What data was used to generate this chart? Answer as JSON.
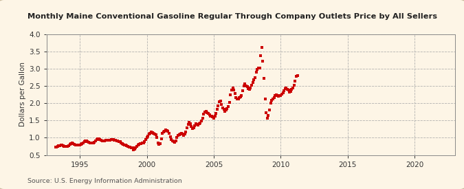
{
  "title": "Monthly Maine Conventional Gasoline Regular Through Company Outlets Price by All Sellers",
  "ylabel": "Dollars per Gallon",
  "source": "Source: U.S. Energy Information Administration",
  "background_color": "#fdf5e6",
  "plot_bg_color": "#fdf5e6",
  "line_color": "#cc0000",
  "marker": "s",
  "markersize": 2.8,
  "xlim": [
    1992.5,
    2023
  ],
  "ylim": [
    0.5,
    4.0
  ],
  "yticks": [
    0.5,
    1.0,
    1.5,
    2.0,
    2.5,
    3.0,
    3.5,
    4.0
  ],
  "xticks": [
    1995,
    2000,
    2005,
    2010,
    2015,
    2020
  ],
  "border_color": "#c8b89a",
  "data": [
    [
      1993.17,
      0.72
    ],
    [
      1993.25,
      0.73
    ],
    [
      1993.33,
      0.75
    ],
    [
      1993.42,
      0.76
    ],
    [
      1993.5,
      0.77
    ],
    [
      1993.58,
      0.79
    ],
    [
      1993.67,
      0.78
    ],
    [
      1993.75,
      0.76
    ],
    [
      1993.83,
      0.75
    ],
    [
      1993.92,
      0.75
    ],
    [
      1994.0,
      0.74
    ],
    [
      1994.08,
      0.74
    ],
    [
      1994.17,
      0.76
    ],
    [
      1994.25,
      0.8
    ],
    [
      1994.33,
      0.83
    ],
    [
      1994.42,
      0.84
    ],
    [
      1994.5,
      0.83
    ],
    [
      1994.58,
      0.81
    ],
    [
      1994.67,
      0.79
    ],
    [
      1994.75,
      0.78
    ],
    [
      1994.83,
      0.78
    ],
    [
      1994.92,
      0.78
    ],
    [
      1995.0,
      0.79
    ],
    [
      1995.08,
      0.81
    ],
    [
      1995.17,
      0.83
    ],
    [
      1995.25,
      0.85
    ],
    [
      1995.33,
      0.88
    ],
    [
      1995.42,
      0.91
    ],
    [
      1995.5,
      0.9
    ],
    [
      1995.58,
      0.88
    ],
    [
      1995.67,
      0.86
    ],
    [
      1995.75,
      0.85
    ],
    [
      1995.83,
      0.84
    ],
    [
      1995.92,
      0.84
    ],
    [
      1996.0,
      0.85
    ],
    [
      1996.08,
      0.86
    ],
    [
      1996.17,
      0.9
    ],
    [
      1996.25,
      0.95
    ],
    [
      1996.33,
      0.97
    ],
    [
      1996.42,
      0.97
    ],
    [
      1996.5,
      0.95
    ],
    [
      1996.58,
      0.93
    ],
    [
      1996.67,
      0.91
    ],
    [
      1996.75,
      0.9
    ],
    [
      1996.83,
      0.91
    ],
    [
      1996.92,
      0.92
    ],
    [
      1997.0,
      0.93
    ],
    [
      1997.08,
      0.92
    ],
    [
      1997.17,
      0.92
    ],
    [
      1997.25,
      0.93
    ],
    [
      1997.33,
      0.94
    ],
    [
      1997.42,
      0.94
    ],
    [
      1997.5,
      0.94
    ],
    [
      1997.58,
      0.93
    ],
    [
      1997.67,
      0.92
    ],
    [
      1997.75,
      0.91
    ],
    [
      1997.83,
      0.9
    ],
    [
      1997.92,
      0.89
    ],
    [
      1998.0,
      0.88
    ],
    [
      1998.08,
      0.85
    ],
    [
      1998.17,
      0.82
    ],
    [
      1998.25,
      0.8
    ],
    [
      1998.33,
      0.79
    ],
    [
      1998.42,
      0.78
    ],
    [
      1998.5,
      0.76
    ],
    [
      1998.58,
      0.74
    ],
    [
      1998.67,
      0.73
    ],
    [
      1998.75,
      0.72
    ],
    [
      1998.83,
      0.71
    ],
    [
      1998.92,
      0.7
    ],
    [
      1999.0,
      0.65
    ],
    [
      1999.08,
      0.66
    ],
    [
      1999.17,
      0.7
    ],
    [
      1999.25,
      0.75
    ],
    [
      1999.33,
      0.79
    ],
    [
      1999.42,
      0.8
    ],
    [
      1999.5,
      0.82
    ],
    [
      1999.58,
      0.83
    ],
    [
      1999.67,
      0.84
    ],
    [
      1999.75,
      0.85
    ],
    [
      1999.83,
      0.88
    ],
    [
      1999.92,
      0.94
    ],
    [
      2000.0,
      1.0
    ],
    [
      2000.08,
      1.05
    ],
    [
      2000.17,
      1.1
    ],
    [
      2000.25,
      1.13
    ],
    [
      2000.33,
      1.16
    ],
    [
      2000.42,
      1.14
    ],
    [
      2000.5,
      1.12
    ],
    [
      2000.58,
      1.1
    ],
    [
      2000.67,
      1.08
    ],
    [
      2000.75,
      1.0
    ],
    [
      2000.83,
      0.84
    ],
    [
      2000.92,
      0.8
    ],
    [
      2001.0,
      0.82
    ],
    [
      2001.08,
      0.96
    ],
    [
      2001.17,
      1.13
    ],
    [
      2001.25,
      1.17
    ],
    [
      2001.33,
      1.19
    ],
    [
      2001.42,
      1.22
    ],
    [
      2001.5,
      1.2
    ],
    [
      2001.58,
      1.18
    ],
    [
      2001.67,
      1.12
    ],
    [
      2001.75,
      1.02
    ],
    [
      2001.83,
      0.94
    ],
    [
      2001.92,
      0.9
    ],
    [
      2002.0,
      0.88
    ],
    [
      2002.08,
      0.86
    ],
    [
      2002.17,
      0.9
    ],
    [
      2002.25,
      1.0
    ],
    [
      2002.33,
      1.06
    ],
    [
      2002.42,
      1.09
    ],
    [
      2002.5,
      1.1
    ],
    [
      2002.58,
      1.13
    ],
    [
      2002.67,
      1.11
    ],
    [
      2002.75,
      1.06
    ],
    [
      2002.83,
      1.11
    ],
    [
      2002.92,
      1.16
    ],
    [
      2003.0,
      1.28
    ],
    [
      2003.08,
      1.38
    ],
    [
      2003.17,
      1.44
    ],
    [
      2003.25,
      1.4
    ],
    [
      2003.33,
      1.32
    ],
    [
      2003.42,
      1.26
    ],
    [
      2003.5,
      1.28
    ],
    [
      2003.58,
      1.35
    ],
    [
      2003.67,
      1.41
    ],
    [
      2003.75,
      1.39
    ],
    [
      2003.83,
      1.36
    ],
    [
      2003.92,
      1.4
    ],
    [
      2004.0,
      1.43
    ],
    [
      2004.08,
      1.49
    ],
    [
      2004.17,
      1.57
    ],
    [
      2004.25,
      1.68
    ],
    [
      2004.33,
      1.74
    ],
    [
      2004.42,
      1.77
    ],
    [
      2004.5,
      1.72
    ],
    [
      2004.58,
      1.7
    ],
    [
      2004.67,
      1.67
    ],
    [
      2004.75,
      1.62
    ],
    [
      2004.83,
      1.63
    ],
    [
      2004.92,
      1.6
    ],
    [
      2005.0,
      1.57
    ],
    [
      2005.08,
      1.62
    ],
    [
      2005.17,
      1.7
    ],
    [
      2005.25,
      1.83
    ],
    [
      2005.33,
      1.93
    ],
    [
      2005.42,
      2.04
    ],
    [
      2005.5,
      2.07
    ],
    [
      2005.58,
      1.97
    ],
    [
      2005.67,
      1.87
    ],
    [
      2005.75,
      1.82
    ],
    [
      2005.83,
      1.77
    ],
    [
      2005.92,
      1.8
    ],
    [
      2006.0,
      1.84
    ],
    [
      2006.08,
      1.9
    ],
    [
      2006.17,
      2.02
    ],
    [
      2006.25,
      2.24
    ],
    [
      2006.33,
      2.38
    ],
    [
      2006.42,
      2.43
    ],
    [
      2006.5,
      2.37
    ],
    [
      2006.58,
      2.27
    ],
    [
      2006.67,
      2.17
    ],
    [
      2006.75,
      2.12
    ],
    [
      2006.83,
      2.13
    ],
    [
      2006.92,
      2.16
    ],
    [
      2007.0,
      2.19
    ],
    [
      2007.08,
      2.23
    ],
    [
      2007.17,
      2.36
    ],
    [
      2007.25,
      2.5
    ],
    [
      2007.33,
      2.55
    ],
    [
      2007.42,
      2.5
    ],
    [
      2007.5,
      2.47
    ],
    [
      2007.58,
      2.42
    ],
    [
      2007.67,
      2.4
    ],
    [
      2007.75,
      2.44
    ],
    [
      2007.83,
      2.52
    ],
    [
      2007.92,
      2.6
    ],
    [
      2008.0,
      2.67
    ],
    [
      2008.08,
      2.74
    ],
    [
      2008.17,
      2.9
    ],
    [
      2008.25,
      2.97
    ],
    [
      2008.33,
      3.02
    ],
    [
      2008.42,
      3.02
    ],
    [
      2008.5,
      3.37
    ],
    [
      2008.58,
      3.62
    ],
    [
      2008.67,
      3.22
    ],
    [
      2008.75,
      2.72
    ],
    [
      2008.83,
      2.12
    ],
    [
      2008.92,
      1.72
    ],
    [
      2009.0,
      1.57
    ],
    [
      2009.08,
      1.65
    ],
    [
      2009.17,
      1.8
    ],
    [
      2009.25,
      2.0
    ],
    [
      2009.33,
      2.08
    ],
    [
      2009.42,
      2.12
    ],
    [
      2009.5,
      2.17
    ],
    [
      2009.58,
      2.22
    ],
    [
      2009.67,
      2.24
    ],
    [
      2009.75,
      2.22
    ],
    [
      2009.83,
      2.2
    ],
    [
      2009.92,
      2.23
    ],
    [
      2010.0,
      2.23
    ],
    [
      2010.08,
      2.26
    ],
    [
      2010.17,
      2.29
    ],
    [
      2010.25,
      2.36
    ],
    [
      2010.33,
      2.42
    ],
    [
      2010.42,
      2.44
    ],
    [
      2010.5,
      2.4
    ],
    [
      2010.58,
      2.37
    ],
    [
      2010.67,
      2.32
    ],
    [
      2010.75,
      2.34
    ],
    [
      2010.83,
      2.4
    ],
    [
      2010.92,
      2.44
    ],
    [
      2011.0,
      2.52
    ],
    [
      2011.08,
      2.64
    ],
    [
      2011.17,
      2.77
    ],
    [
      2011.25,
      2.8
    ]
  ]
}
